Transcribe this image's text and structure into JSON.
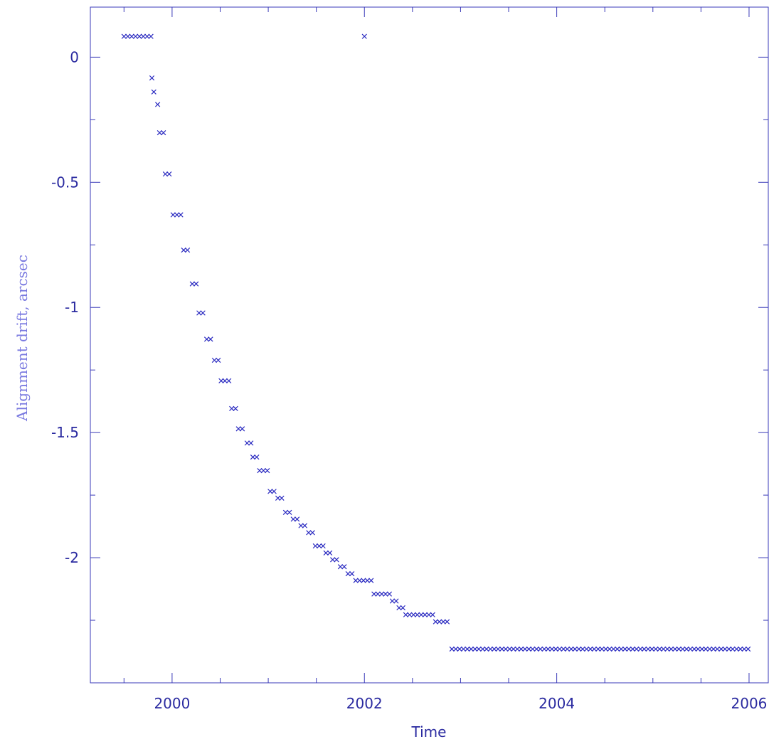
{
  "colors": {
    "axis": "#3a3ab8",
    "label": "#2a2aa0",
    "ylabel": "#7a7ae0",
    "marker": "#2a2ac0"
  },
  "chart_data": {
    "type": "scatter",
    "title": "",
    "xlabel": "Time",
    "ylabel": "Alignment drift, arcsec",
    "xlim": [
      1999.15,
      2006.2
    ],
    "ylim": [
      -2.5,
      0.2
    ],
    "xticks": [
      2000,
      2002,
      2004,
      2006
    ],
    "xtick_labels": [
      "2000",
      "2002",
      "2004",
      "2006"
    ],
    "yticks": [
      0,
      -0.5,
      -1,
      -1.5,
      -2
    ],
    "ytick_labels": [
      "0",
      "-0.5",
      "-1",
      "-1.5",
      "-2"
    ],
    "x_minor_step": 0.5,
    "y_minor_step": 0.25,
    "grid": false,
    "legend": "none",
    "marker": "x",
    "series": [
      {
        "points": [
          [
            1999.5,
            0.083
          ],
          [
            1999.54,
            0.083
          ],
          [
            1999.58,
            0.083
          ],
          [
            1999.62,
            0.083
          ],
          [
            1999.66,
            0.083
          ],
          [
            1999.7,
            0.083
          ],
          [
            1999.74,
            0.083
          ],
          [
            1999.78,
            0.083
          ],
          [
            1999.79,
            -0.083
          ],
          [
            1999.81,
            -0.139
          ],
          [
            1999.85,
            -0.189
          ],
          [
            1999.87,
            -0.302
          ],
          [
            1999.91,
            -0.302
          ],
          [
            1999.93,
            -0.467
          ],
          [
            1999.97,
            -0.467
          ],
          [
            2000.01,
            -0.63
          ],
          [
            2000.05,
            -0.63
          ],
          [
            2000.09,
            -0.63
          ],
          [
            2000.12,
            -0.771
          ],
          [
            2000.16,
            -0.771
          ],
          [
            2000.21,
            -0.906
          ],
          [
            2000.25,
            -0.906
          ],
          [
            2000.28,
            -1.022
          ],
          [
            2000.32,
            -1.022
          ],
          [
            2000.36,
            -1.127
          ],
          [
            2000.4,
            -1.127
          ],
          [
            2000.44,
            -1.211
          ],
          [
            2000.48,
            -1.211
          ],
          [
            2000.51,
            -1.293
          ],
          [
            2000.55,
            -1.293
          ],
          [
            2000.59,
            -1.293
          ],
          [
            2000.62,
            -1.404
          ],
          [
            2000.66,
            -1.404
          ],
          [
            2000.69,
            -1.485
          ],
          [
            2000.73,
            -1.485
          ],
          [
            2000.78,
            -1.542
          ],
          [
            2000.82,
            -1.542
          ],
          [
            2000.84,
            -1.598
          ],
          [
            2000.88,
            -1.598
          ],
          [
            2000.91,
            -1.652
          ],
          [
            2000.95,
            -1.652
          ],
          [
            2000.99,
            -1.652
          ],
          [
            2001.02,
            -1.735
          ],
          [
            2001.06,
            -1.735
          ],
          [
            2001.1,
            -1.762
          ],
          [
            2001.14,
            -1.762
          ],
          [
            2001.18,
            -1.819
          ],
          [
            2001.22,
            -1.819
          ],
          [
            2001.26,
            -1.846
          ],
          [
            2001.3,
            -1.846
          ],
          [
            2001.34,
            -1.872
          ],
          [
            2001.38,
            -1.872
          ],
          [
            2001.42,
            -1.9
          ],
          [
            2001.46,
            -1.9
          ],
          [
            2001.49,
            -1.953
          ],
          [
            2001.53,
            -1.953
          ],
          [
            2001.57,
            -1.953
          ],
          [
            2001.6,
            -1.981
          ],
          [
            2001.64,
            -1.981
          ],
          [
            2001.67,
            -2.008
          ],
          [
            2001.71,
            -2.008
          ],
          [
            2001.75,
            -2.036
          ],
          [
            2001.79,
            -2.036
          ],
          [
            2001.83,
            -2.064
          ],
          [
            2001.87,
            -2.064
          ],
          [
            2001.91,
            -2.091
          ],
          [
            2001.95,
            -2.091
          ],
          [
            2001.99,
            -2.091
          ],
          [
            2002.03,
            -2.091
          ],
          [
            2002.07,
            -2.091
          ],
          [
            2002.1,
            -2.145
          ],
          [
            2002.14,
            -2.145
          ],
          [
            2002.18,
            -2.145
          ],
          [
            2002.22,
            -2.145
          ],
          [
            2002.26,
            -2.145
          ],
          [
            2002.29,
            -2.173
          ],
          [
            2002.33,
            -2.173
          ],
          [
            2002.36,
            -2.2
          ],
          [
            2002.4,
            -2.2
          ],
          [
            2002.43,
            -2.228
          ],
          [
            2002.47,
            -2.228
          ],
          [
            2002.51,
            -2.228
          ],
          [
            2002.55,
            -2.228
          ],
          [
            2002.59,
            -2.228
          ],
          [
            2002.63,
            -2.228
          ],
          [
            2002.67,
            -2.228
          ],
          [
            2002.71,
            -2.228
          ],
          [
            2002.74,
            -2.256
          ],
          [
            2002.78,
            -2.256
          ],
          [
            2002.82,
            -2.256
          ],
          [
            2002.86,
            -2.256
          ],
          [
            2002.0,
            0.083
          ],
          [
            2002.91,
            -2.365
          ],
          [
            2002.95,
            -2.365
          ],
          [
            2002.99,
            -2.365
          ],
          [
            2003.03,
            -2.365
          ],
          [
            2003.07,
            -2.365
          ],
          [
            2003.11,
            -2.365
          ],
          [
            2003.15,
            -2.365
          ],
          [
            2003.19,
            -2.365
          ],
          [
            2003.23,
            -2.365
          ],
          [
            2003.27,
            -2.365
          ],
          [
            2003.31,
            -2.365
          ],
          [
            2003.35,
            -2.365
          ],
          [
            2003.39,
            -2.365
          ],
          [
            2003.43,
            -2.365
          ],
          [
            2003.47,
            -2.365
          ],
          [
            2003.51,
            -2.365
          ],
          [
            2003.55,
            -2.365
          ],
          [
            2003.59,
            -2.365
          ],
          [
            2003.63,
            -2.365
          ],
          [
            2003.67,
            -2.365
          ],
          [
            2003.71,
            -2.365
          ],
          [
            2003.75,
            -2.365
          ],
          [
            2003.79,
            -2.365
          ],
          [
            2003.83,
            -2.365
          ],
          [
            2003.87,
            -2.365
          ],
          [
            2003.91,
            -2.365
          ],
          [
            2003.95,
            -2.365
          ],
          [
            2003.99,
            -2.365
          ],
          [
            2004.03,
            -2.365
          ],
          [
            2004.07,
            -2.365
          ],
          [
            2004.11,
            -2.365
          ],
          [
            2004.15,
            -2.365
          ],
          [
            2004.19,
            -2.365
          ],
          [
            2004.23,
            -2.365
          ],
          [
            2004.27,
            -2.365
          ],
          [
            2004.31,
            -2.365
          ],
          [
            2004.35,
            -2.365
          ],
          [
            2004.39,
            -2.365
          ],
          [
            2004.43,
            -2.365
          ],
          [
            2004.47,
            -2.365
          ],
          [
            2004.51,
            -2.365
          ],
          [
            2004.55,
            -2.365
          ],
          [
            2004.59,
            -2.365
          ],
          [
            2004.63,
            -2.365
          ],
          [
            2004.67,
            -2.365
          ],
          [
            2004.71,
            -2.365
          ],
          [
            2004.75,
            -2.365
          ],
          [
            2004.79,
            -2.365
          ],
          [
            2004.83,
            -2.365
          ],
          [
            2004.87,
            -2.365
          ],
          [
            2004.91,
            -2.365
          ],
          [
            2004.95,
            -2.365
          ],
          [
            2004.99,
            -2.365
          ],
          [
            2005.03,
            -2.365
          ],
          [
            2005.07,
            -2.365
          ],
          [
            2005.11,
            -2.365
          ],
          [
            2005.15,
            -2.365
          ],
          [
            2005.19,
            -2.365
          ],
          [
            2005.23,
            -2.365
          ],
          [
            2005.27,
            -2.365
          ],
          [
            2005.31,
            -2.365
          ],
          [
            2005.35,
            -2.365
          ],
          [
            2005.39,
            -2.365
          ],
          [
            2005.43,
            -2.365
          ],
          [
            2005.47,
            -2.365
          ],
          [
            2005.51,
            -2.365
          ],
          [
            2005.55,
            -2.365
          ],
          [
            2005.59,
            -2.365
          ],
          [
            2005.63,
            -2.365
          ],
          [
            2005.67,
            -2.365
          ],
          [
            2005.71,
            -2.365
          ],
          [
            2005.75,
            -2.365
          ],
          [
            2005.79,
            -2.365
          ],
          [
            2005.83,
            -2.365
          ],
          [
            2005.87,
            -2.365
          ],
          [
            2005.91,
            -2.365
          ],
          [
            2005.95,
            -2.365
          ],
          [
            2005.99,
            -2.365
          ]
        ]
      }
    ]
  }
}
